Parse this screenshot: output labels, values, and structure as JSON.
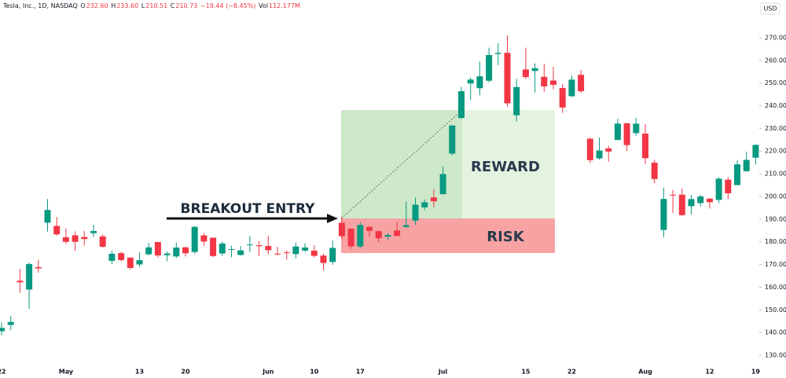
{
  "chart_data": {
    "type": "candlestick",
    "header": {
      "symbol": "Tesla, Inc., 1D, NASDAQ",
      "o_label": "O",
      "o": "232.60",
      "h_label": "H",
      "h": "233.60",
      "l_label": "L",
      "l": "210.51",
      "c_label": "C",
      "c": "210.73",
      "change": "−19.44 (−8.45%)",
      "vol_label": "Vol",
      "vol": "112.177M"
    },
    "currency": "USD",
    "annotations": {
      "entry": "BREAKOUT ENTRY",
      "reward": "REWARD",
      "risk": "RISK"
    },
    "categories": [
      "22",
      null,
      null,
      null,
      null,
      null,
      null,
      "May",
      null,
      null,
      null,
      null,
      null,
      null,
      null,
      "13",
      null,
      null,
      null,
      null,
      "20",
      null,
      null,
      null,
      null,
      null,
      null,
      null,
      null,
      "Jun",
      null,
      null,
      null,
      null,
      "10",
      null,
      null,
      null,
      null,
      "17",
      null,
      null,
      null,
      null,
      null,
      null,
      null,
      null,
      "Jul",
      null,
      null,
      null,
      null,
      null,
      null,
      null,
      null,
      "15",
      null,
      null,
      null,
      null,
      "22",
      null,
      null,
      null,
      null,
      null,
      null,
      null,
      "Aug",
      null,
      null,
      null,
      null,
      null,
      null,
      "12",
      null,
      null,
      null,
      null,
      "19"
    ],
    "open": [
      140.56,
      143.33,
      162.84,
      158.96,
      168.85,
      188.42,
      186.98,
      182.0,
      182.86,
      182.1,
      183.8,
      182.4,
      171.59,
      175.01,
      173.05,
      170.0,
      174.5,
      179.9,
      174.1,
      173.55,
      177.56,
      175.51,
      182.85,
      181.8,
      174.84,
      176.4,
      174.19,
      178.58,
      178.5,
      178.13,
      174.78,
      175.35,
      174.6,
      176.13,
      176.06,
      173.92,
      171.12,
      188.39,
      185.8,
      177.92,
      186.56,
      184.68,
      182.3,
      184.97,
      186.54,
      189.33,
      195.17,
      199.55,
      201.02,
      218.89,
      234.56,
      249.81,
      247.71,
      251.0,
      262.8,
      263.3,
      235.8,
      255.97,
      255.31,
      252.73,
      251.09,
      247.79,
      244.21,
      253.6,
      225.42,
      216.8,
      221.19,
      224.9,
      232.25,
      227.9,
      227.69,
      214.88,
      185.22,
      200.75,
      200.77,
      195.7,
      197.05,
      199.02,
      198.47,
      207.39,
      205.02,
      211.15,
      217.07
    ],
    "high": [
      144.44,
      147.26,
      167.97,
      170.88,
      172.12,
      198.87,
      190.95,
      185.86,
      184.6,
      184.78,
      187.56,
      183.26,
      176.06,
      175.62,
      173.06,
      175.4,
      179.49,
      180.0,
      175.79,
      179.63,
      177.75,
      186.88,
      183.8,
      181.9,
      180.08,
      178.25,
      178.15,
      182.67,
      180.32,
      182.64,
      177.76,
      176.15,
      179.73,
      179.35,
      178.57,
      174.75,
      180.55,
      191.08,
      186.0,
      188.81,
      187.2,
      185.21,
      183.95,
      188.8,
      197.76,
      199.53,
      198.72,
      203.2,
      213.23,
      231.3,
      248.35,
      252.37,
      259.44,
      265.61,
      267.59,
      271.0,
      251.84,
      265.6,
      258.62,
      258.47,
      257.14,
      249.44,
      253.21,
      255.76,
      225.99,
      226.0,
      222.28,
      234.27,
      232.41,
      234.68,
      231.87,
      216.13,
      203.88,
      202.9,
      203.49,
      200.7,
      200.7,
      199.26,
      208.49,
      208.44,
      215.88,
      219.8,
      222.98
    ],
    "low": [
      138.8,
      141.11,
      157.51,
      150.5,
      166.37,
      184.54,
      182.71,
      179.01,
      176.02,
      178.42,
      182.2,
      177.4,
      170.15,
      171.37,
      167.75,
      169.0,
      174.07,
      173.11,
      171.43,
      172.75,
      173.52,
      174.71,
      178.12,
      173.26,
      173.73,
      173.16,
      173.93,
      175.38,
      173.82,
      174.49,
      174.0,
      172.13,
      172.73,
      175.58,
      173.17,
      167.41,
      169.8,
      181.23,
      176.92,
      177.0,
      182.37,
      179.66,
      180.69,
      182.58,
      186.07,
      187.46,
      194.05,
      195.26,
      200.85,
      218.06,
      234.25,
      242.46,
      244.57,
      250.3,
      257.86,
      239.65,
      233.09,
      251.73,
      245.8,
      246.18,
      247.2,
      236.83,
      243.75,
      245.63,
      214.71,
      216.23,
      215.33,
      224.7,
      220.0,
      226.79,
      214.33,
      205.78,
      182.0,
      192.67,
      191.48,
      192.04,
      195.6,
      194.67,
      197.06,
      198.75,
      204.82,
      210.8,
      214.09
    ],
    "close": [
      142.05,
      144.68,
      162.13,
      170.18,
      168.29,
      194.05,
      183.28,
      179.99,
      180.01,
      181.19,
      184.76,
      177.81,
      174.72,
      171.97,
      168.47,
      171.89,
      177.55,
      173.99,
      174.84,
      177.46,
      174.95,
      186.6,
      180.11,
      173.74,
      179.24,
      176.75,
      176.19,
      178.79,
      178.08,
      176.29,
      174.77,
      175.0,
      177.94,
      177.48,
      173.79,
      170.66,
      177.29,
      182.47,
      178.01,
      187.44,
      184.86,
      181.57,
      183.01,
      182.58,
      187.35,
      196.37,
      197.42,
      197.88,
      209.86,
      231.26,
      246.39,
      251.52,
      252.94,
      262.33,
      263.26,
      241.03,
      248.23,
      252.64,
      256.56,
      248.5,
      249.23,
      239.2,
      251.51,
      246.38,
      215.99,
      220.25,
      219.8,
      232.1,
      222.62,
      232.07,
      216.86,
      207.67,
      198.88,
      200.64,
      191.76,
      198.84,
      200.0,
      197.49,
      207.83,
      201.38,
      214.14,
      216.12,
      222.72
    ],
    "up_color": "#089981",
    "down_color": "#f23645",
    "ylim": [
      125.5,
      286.6
    ],
    "yticks": [
      {
        "value": 130,
        "label": "130.00"
      },
      {
        "value": 140,
        "label": "140.00"
      },
      {
        "value": 150,
        "label": "150.00"
      },
      {
        "value": 160,
        "label": "160.00"
      },
      {
        "value": 170,
        "label": "170.00"
      },
      {
        "value": 180,
        "label": "180.00"
      },
      {
        "value": 190,
        "label": "190.00"
      },
      {
        "value": 200,
        "label": "200.00"
      },
      {
        "value": 210,
        "label": "210.00"
      },
      {
        "value": 220,
        "label": "220.00"
      },
      {
        "value": 230,
        "label": "230.00"
      },
      {
        "value": 240,
        "label": "240.00"
      },
      {
        "value": 250,
        "label": "250.00"
      },
      {
        "value": 260,
        "label": "260.00"
      },
      {
        "value": 270,
        "label": "270.00"
      }
    ],
    "grid": false
  }
}
